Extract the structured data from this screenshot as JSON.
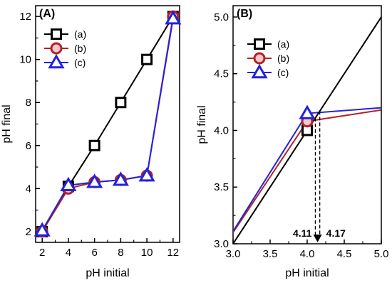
{
  "colors": {
    "a": "#000000",
    "b": "#b22222",
    "c": "#2222dd",
    "b_fill_tint": "#f4c8cc"
  },
  "markers": {
    "a": "square",
    "b": "circle",
    "c": "triangle"
  },
  "chart_data": [
    {
      "panel": "A",
      "type": "line",
      "panel_label": "(A)",
      "xlabel": "pH initial",
      "ylabel": "pH final",
      "xlim": [
        1.5,
        12.5
      ],
      "ylim": [
        1.5,
        12.5
      ],
      "xticks": [
        2,
        4,
        6,
        8,
        10,
        12
      ],
      "yticks": [
        2,
        4,
        6,
        8,
        10,
        12
      ],
      "legend_placement": "top-left",
      "series": [
        {
          "name": "(a)",
          "x": [
            2,
            4,
            6,
            8,
            10,
            12
          ],
          "y": [
            2.0,
            4.1,
            6.0,
            8.0,
            10.0,
            12.0
          ]
        },
        {
          "name": "(b)",
          "x": [
            2,
            4,
            6,
            8,
            10,
            12
          ],
          "y": [
            2.0,
            4.0,
            4.3,
            4.4,
            4.6,
            12.0
          ]
        },
        {
          "name": "(c)",
          "x": [
            2,
            4,
            6,
            8,
            10,
            12
          ],
          "y": [
            2.05,
            4.15,
            4.3,
            4.4,
            4.6,
            11.9
          ]
        }
      ]
    },
    {
      "panel": "B",
      "type": "line",
      "panel_label": "(B)",
      "xlabel": "pH initial",
      "ylabel": "pH final",
      "xlim": [
        3.0,
        5.0
      ],
      "ylim": [
        3.0,
        5.1
      ],
      "xticks": [
        3.0,
        3.5,
        4.0,
        4.5,
        5.0
      ],
      "xtick_labels": [
        "3.0",
        "3.5",
        "4.0",
        "4.5",
        "5.0"
      ],
      "yticks": [
        3.0,
        3.5,
        4.0,
        4.5,
        5.0
      ],
      "ytick_labels": [
        "3.0",
        "3.5",
        "4.0",
        "4.5",
        "5.0"
      ],
      "legend_placement": "top-left",
      "series": [
        {
          "name": "(a)",
          "x": [
            3.0,
            4.0,
            5.0
          ],
          "y": [
            3.0,
            4.0,
            5.0
          ],
          "marker_index": 1
        },
        {
          "name": "(b)",
          "x": [
            3.0,
            4.0,
            5.0
          ],
          "y": [
            3.1,
            4.08,
            4.18
          ],
          "marker_index": 1
        },
        {
          "name": "(c)",
          "x": [
            3.0,
            4.0,
            5.0
          ],
          "y": [
            3.11,
            4.15,
            4.2
          ],
          "marker_index": 1
        }
      ],
      "annotations": [
        {
          "text": "4.11",
          "x": 4.11
        },
        {
          "text": "4.17",
          "x": 4.17
        }
      ],
      "dashed_lines": [
        {
          "x": 4.11,
          "y_top": 4.11
        },
        {
          "x": 4.17,
          "y_top": 4.17
        }
      ]
    }
  ]
}
